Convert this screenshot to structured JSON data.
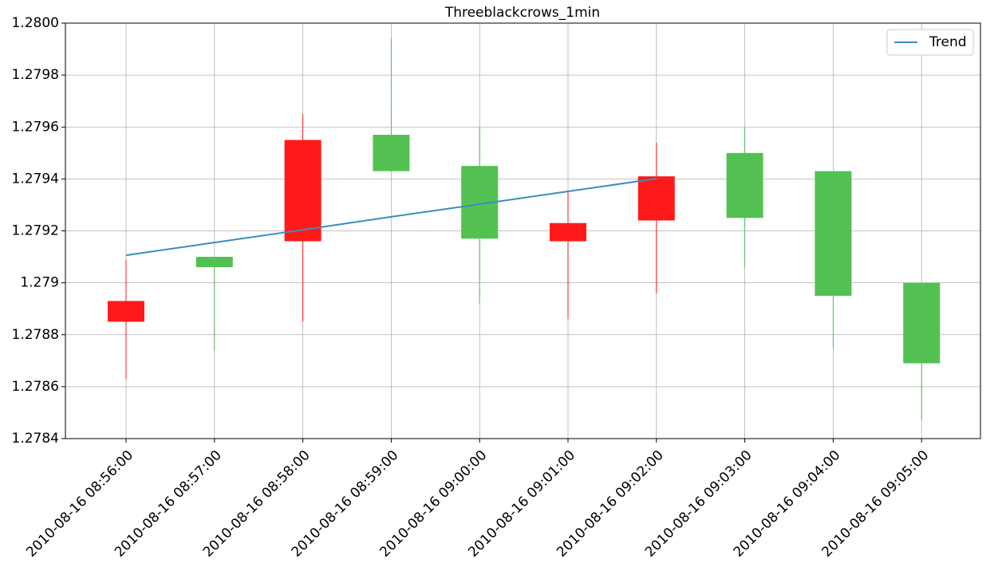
{
  "chart_data": {
    "type": "candlestick",
    "title": "Threeblackcrows_1min",
    "categories": [
      "2010-08-16 08:56:00",
      "2010-08-16 08:57:00",
      "2010-08-16 08:58:00",
      "2010-08-16 08:59:00",
      "2010-08-16 09:00:00",
      "2010-08-16 09:01:00",
      "2010-08-16 09:02:00",
      "2010-08-16 09:03:00",
      "2010-08-16 09:04:00",
      "2010-08-16 09:05:00"
    ],
    "open": [
      1.27893,
      1.27906,
      1.27955,
      1.27943,
      1.27917,
      1.27923,
      1.27941,
      1.27925,
      1.27895,
      1.27869
    ],
    "high": [
      1.27909,
      1.2791,
      1.27965,
      1.27994,
      1.2796,
      1.27935,
      1.27954,
      1.2796,
      1.27943,
      1.279
    ],
    "low": [
      1.27863,
      1.27874,
      1.27885,
      1.27943,
      1.27892,
      1.27886,
      1.27896,
      1.27906,
      1.27875,
      1.27847
    ],
    "close": [
      1.27885,
      1.2791,
      1.27916,
      1.27957,
      1.27945,
      1.27916,
      1.27924,
      1.2795,
      1.27943,
      1.279
    ],
    "up_color": "#52c152",
    "down_color": "#ff1a1a",
    "series": [
      {
        "name": "Trend",
        "color": "#3a8dbf",
        "values": [
          1.279106,
          1.279155,
          1.279204,
          1.279254,
          1.279303,
          1.279352,
          1.279401,
          null,
          null,
          null
        ]
      }
    ],
    "ylim": [
      1.2784,
      1.28
    ],
    "yticks": [
      1.2784,
      1.2786,
      1.2788,
      1.279,
      1.2792,
      1.2794,
      1.2796,
      1.2798,
      {
        "value": 1.28,
        "label": "1.2800"
      }
    ],
    "grid": true,
    "legend": "upper right"
  }
}
